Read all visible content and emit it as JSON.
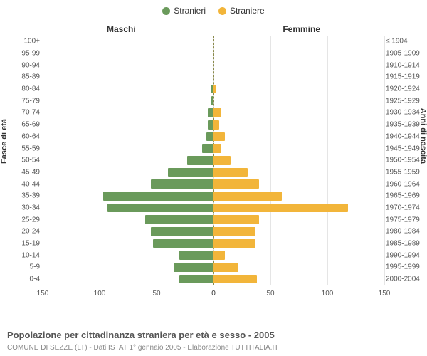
{
  "chart": {
    "type": "population-pyramid",
    "legend": {
      "male": "Stranieri",
      "female": "Straniere"
    },
    "colors": {
      "male": "#6a9a5b",
      "female": "#f2b53a",
      "grid": "#e5e5e5",
      "centerline": "#8a8a4a",
      "background": "#ffffff"
    },
    "side_titles": {
      "left": "Maschi",
      "right": "Femmine"
    },
    "axis_labels": {
      "left": "Fasce di età",
      "right": "Anni di nascita"
    },
    "x_axis": {
      "max": 150,
      "ticks_left": [
        150,
        100,
        50,
        0
      ],
      "ticks_right": [
        0,
        50,
        100,
        150
      ]
    },
    "rows": [
      {
        "age": "100+",
        "year": "≤ 1904",
        "male": 0,
        "female": 0
      },
      {
        "age": "95-99",
        "year": "1905-1909",
        "male": 0,
        "female": 0
      },
      {
        "age": "90-94",
        "year": "1910-1914",
        "male": 0,
        "female": 0
      },
      {
        "age": "85-89",
        "year": "1915-1919",
        "male": 0,
        "female": 0
      },
      {
        "age": "80-84",
        "year": "1920-1924",
        "male": 2,
        "female": 2
      },
      {
        "age": "75-79",
        "year": "1925-1929",
        "male": 2,
        "female": 0
      },
      {
        "age": "70-74",
        "year": "1930-1934",
        "male": 5,
        "female": 7
      },
      {
        "age": "65-69",
        "year": "1935-1939",
        "male": 5,
        "female": 5
      },
      {
        "age": "60-64",
        "year": "1940-1944",
        "male": 6,
        "female": 10
      },
      {
        "age": "55-59",
        "year": "1945-1949",
        "male": 10,
        "female": 7
      },
      {
        "age": "50-54",
        "year": "1950-1954",
        "male": 23,
        "female": 15
      },
      {
        "age": "45-49",
        "year": "1955-1959",
        "male": 40,
        "female": 30
      },
      {
        "age": "40-44",
        "year": "1960-1964",
        "male": 55,
        "female": 40
      },
      {
        "age": "35-39",
        "year": "1965-1969",
        "male": 97,
        "female": 60
      },
      {
        "age": "30-34",
        "year": "1970-1974",
        "male": 93,
        "female": 118
      },
      {
        "age": "25-29",
        "year": "1975-1979",
        "male": 60,
        "female": 40
      },
      {
        "age": "20-24",
        "year": "1980-1984",
        "male": 55,
        "female": 37
      },
      {
        "age": "15-19",
        "year": "1985-1989",
        "male": 53,
        "female": 37
      },
      {
        "age": "10-14",
        "year": "1990-1994",
        "male": 30,
        "female": 10
      },
      {
        "age": "5-9",
        "year": "1995-1999",
        "male": 35,
        "female": 22
      },
      {
        "age": "0-4",
        "year": "2000-2004",
        "male": 30,
        "female": 38
      }
    ],
    "caption": "Popolazione per cittadinanza straniera per età e sesso - 2005",
    "subcaption": "COMUNE DI SEZZE (LT) - Dati ISTAT 1° gennaio 2005 - Elaborazione TUTTITALIA.IT",
    "fontsize": {
      "label": 10,
      "title": 12,
      "caption": 13,
      "subcaption": 10
    }
  }
}
